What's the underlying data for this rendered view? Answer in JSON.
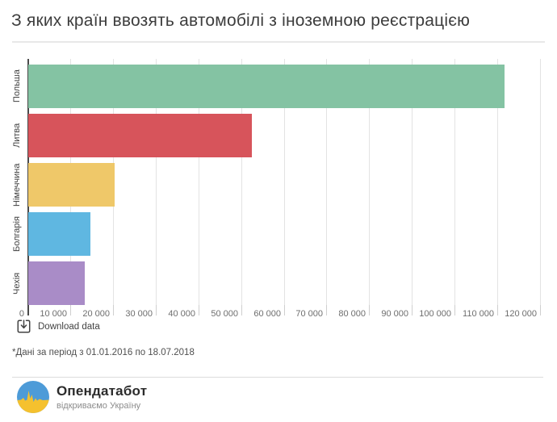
{
  "header": {
    "title": "З яких країн ввозять автомобілі з іноземною реєстрацією"
  },
  "chart_data": {
    "type": "bar",
    "orientation": "horizontal",
    "title": "З яких країн ввозять автомобілі з іноземною реєстрацією",
    "categories": [
      "Польша",
      "Литва",
      "Німеччина",
      "Болгарія",
      "Чехія"
    ],
    "values": [
      111500,
      52400,
      20200,
      14600,
      13300
    ],
    "bar_colors": [
      "#84c3a3",
      "#d7545b",
      "#efc869",
      "#5fb7e1",
      "#a98cc7"
    ],
    "xlim": [
      0,
      120000
    ],
    "x_ticks": [
      0,
      10000,
      20000,
      30000,
      40000,
      50000,
      60000,
      70000,
      80000,
      90000,
      100000,
      110000,
      120000
    ],
    "x_tick_labels": [
      "0",
      "10 000",
      "20 000",
      "30 000",
      "40 000",
      "50 000",
      "60 000",
      "70 000",
      "80 000",
      "90 000",
      "100 000",
      "110 000",
      "120 000"
    ],
    "grid": true,
    "legend": "none",
    "xlabel": "",
    "ylabel": ""
  },
  "toolbar": {
    "download_label": "Download data"
  },
  "footnote": {
    "text": "*Дані за період з 01.01.2016 по 18.07.2018"
  },
  "branding": {
    "name": "Опендатабот",
    "tagline": "відкриваємо Україну",
    "logo_colors": {
      "blue": "#4d9bd8",
      "yellow": "#f5c12e"
    }
  }
}
